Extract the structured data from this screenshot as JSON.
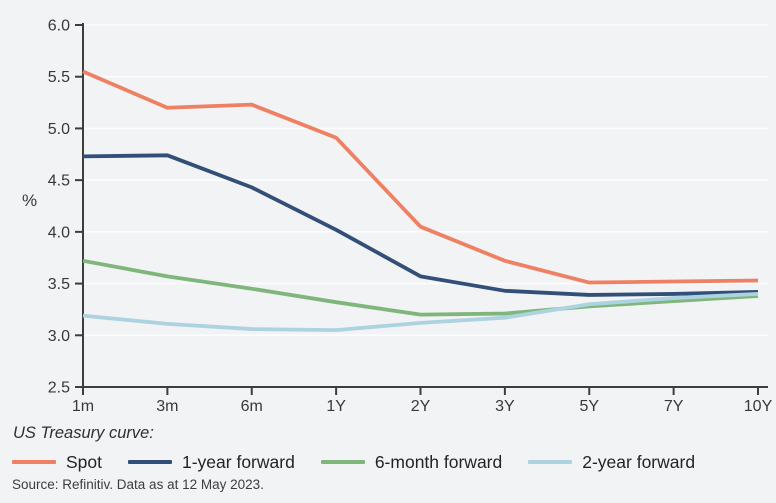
{
  "chart_data": {
    "type": "line",
    "unit_label": "%",
    "categories": [
      "1m",
      "3m",
      "6m",
      "1Y",
      "2Y",
      "3Y",
      "5Y",
      "7Y",
      "10Y"
    ],
    "series": [
      {
        "name": "Spot",
        "color": "#ee8164",
        "values": [
          5.55,
          5.2,
          5.23,
          4.91,
          4.05,
          3.72,
          3.51,
          3.52,
          3.53
        ]
      },
      {
        "name": "1-year forward",
        "color": "#324f78",
        "values": [
          4.73,
          4.74,
          4.43,
          4.02,
          3.57,
          3.43,
          3.39,
          3.4,
          3.42
        ]
      },
      {
        "name": "6-month forward",
        "color": "#7fb67c",
        "values": [
          3.72,
          3.57,
          3.45,
          3.32,
          3.2,
          3.21,
          3.28,
          3.33,
          3.38
        ]
      },
      {
        "name": "2-year forward",
        "color": "#aed3e0",
        "values": [
          3.19,
          3.11,
          3.06,
          3.05,
          3.12,
          3.17,
          3.3,
          3.36,
          3.4
        ]
      }
    ],
    "ylim": [
      2.5,
      6.0
    ],
    "ytick_step": 0.5,
    "ytick_labels": [
      "2.5",
      "3.0",
      "3.5",
      "4.0",
      "4.5",
      "5.0",
      "5.5",
      "6.0"
    ],
    "grid": "horizontal-white-gridlines",
    "legend_position": "bottom",
    "legend_title": "US Treasury curve:"
  },
  "footer": {
    "source": "Source: Refinitiv. Data as at 12 May 2023."
  },
  "colors": {
    "background": "#f2f3f5",
    "gridline": "#fcfdfd",
    "axis": "#3d3d3d",
    "tick_text": "#383838"
  }
}
